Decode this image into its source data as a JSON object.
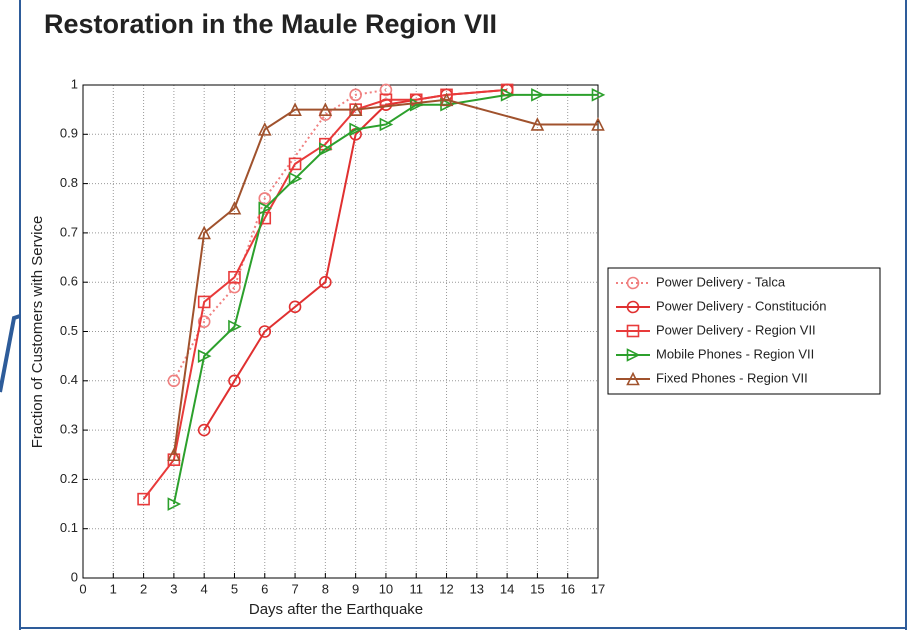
{
  "chart_data": {
    "type": "line",
    "title": "Restoration in the Maule Region VII",
    "xlabel": "Days after the Earthquake",
    "ylabel": "Fraction of Customers with Service",
    "xlim": [
      0,
      17
    ],
    "xticks": [
      0,
      1,
      2,
      3,
      4,
      5,
      6,
      7,
      8,
      9,
      10,
      11,
      12,
      13,
      14,
      15,
      16,
      17
    ],
    "ylim": [
      0,
      1
    ],
    "yticks": [
      0,
      0.1,
      0.2,
      0.3,
      0.4,
      0.5,
      0.6,
      0.7,
      0.8,
      0.9,
      1
    ],
    "grid": true,
    "legend": "right",
    "series": [
      {
        "name": "Power Delivery - Talca",
        "color": "#f08080",
        "marker": "circle",
        "dash": "dotted",
        "x": [
          3,
          4,
          5,
          6,
          8,
          9,
          10
        ],
        "values": [
          0.4,
          0.52,
          0.59,
          0.77,
          0.94,
          0.98,
          0.99
        ]
      },
      {
        "name": "Power Delivery - Constitución",
        "color": "#e03030",
        "marker": "circle",
        "dash": "solid",
        "x": [
          4,
          5,
          6,
          7,
          8,
          9,
          10,
          11,
          12,
          14
        ],
        "values": [
          0.3,
          0.4,
          0.5,
          0.55,
          0.6,
          0.9,
          0.96,
          0.97,
          0.98,
          0.99
        ]
      },
      {
        "name": "Power Delivery - Region VII",
        "color": "#e83a3a",
        "marker": "square",
        "dash": "solid",
        "x": [
          2,
          3,
          4,
          5,
          6,
          7,
          8,
          9,
          10,
          11,
          12,
          14
        ],
        "values": [
          0.16,
          0.24,
          0.56,
          0.61,
          0.73,
          0.84,
          0.88,
          0.95,
          0.97,
          0.97,
          0.98,
          0.99
        ]
      },
      {
        "name": "Mobile Phones - Region VII",
        "color": "#2ca02c",
        "marker": "triangle-right",
        "dash": "solid",
        "x": [
          3,
          4,
          5,
          6,
          7,
          8,
          9,
          10,
          11,
          12,
          14,
          15,
          17
        ],
        "values": [
          0.15,
          0.45,
          0.51,
          0.75,
          0.81,
          0.87,
          0.91,
          0.92,
          0.96,
          0.96,
          0.98,
          0.98,
          0.98
        ]
      },
      {
        "name": "Fixed Phones - Region VII",
        "color": "#a0522d",
        "marker": "triangle-up",
        "dash": "solid",
        "x": [
          3,
          4,
          5,
          6,
          7,
          8,
          9,
          12,
          15,
          17
        ],
        "values": [
          0.25,
          0.7,
          0.75,
          0.91,
          0.95,
          0.95,
          0.95,
          0.97,
          0.92,
          0.92
        ]
      }
    ]
  }
}
